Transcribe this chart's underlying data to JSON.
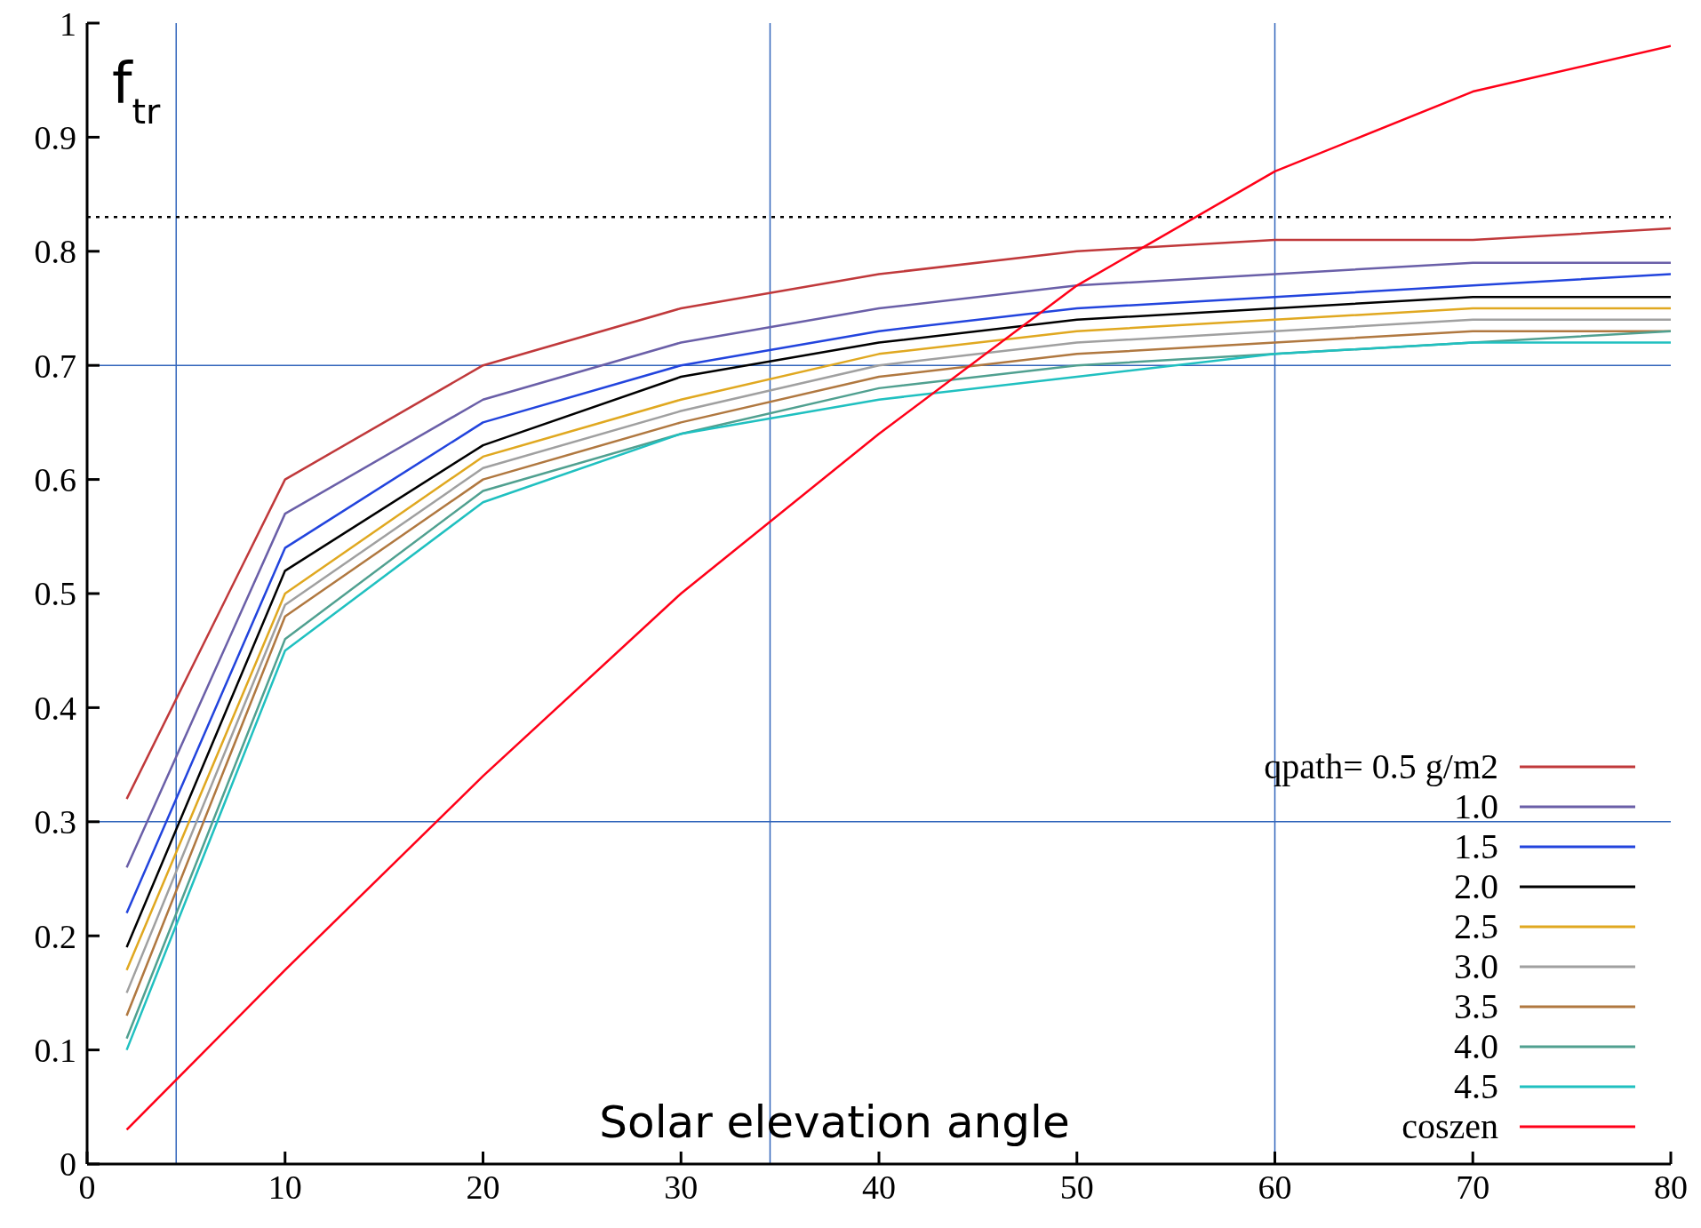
{
  "chart_data": {
    "type": "line",
    "xlabel": "Solar elevation angle",
    "ylabel": "f$_{tr}$",
    "x": [
      2,
      10,
      20,
      30,
      40,
      50,
      60,
      70,
      80
    ],
    "series": [
      {
        "name": "qpath= 0.5 g/m2",
        "color": "#c0393b",
        "values": [
          0.32,
          0.6,
          0.7,
          0.75,
          0.78,
          0.8,
          0.81,
          0.81,
          0.82
        ]
      },
      {
        "name": "1.0",
        "color": "#6a5fa8",
        "values": [
          0.26,
          0.57,
          0.67,
          0.72,
          0.75,
          0.77,
          0.78,
          0.79,
          0.79
        ]
      },
      {
        "name": "1.5",
        "color": "#2244dd",
        "values": [
          0.22,
          0.54,
          0.65,
          0.7,
          0.73,
          0.75,
          0.76,
          0.77,
          0.78
        ]
      },
      {
        "name": "2.0",
        "color": "#000000",
        "values": [
          0.19,
          0.52,
          0.63,
          0.69,
          0.72,
          0.74,
          0.75,
          0.76,
          0.76
        ]
      },
      {
        "name": "2.5",
        "color": "#e0a820",
        "values": [
          0.17,
          0.5,
          0.62,
          0.67,
          0.71,
          0.73,
          0.74,
          0.75,
          0.75
        ]
      },
      {
        "name": "3.0",
        "color": "#a0a0a0",
        "values": [
          0.15,
          0.49,
          0.61,
          0.66,
          0.7,
          0.72,
          0.73,
          0.74,
          0.74
        ]
      },
      {
        "name": "3.5",
        "color": "#b07840",
        "values": [
          0.13,
          0.48,
          0.6,
          0.65,
          0.69,
          0.71,
          0.72,
          0.73,
          0.73
        ]
      },
      {
        "name": "4.0",
        "color": "#50a090",
        "values": [
          0.11,
          0.46,
          0.59,
          0.64,
          0.68,
          0.7,
          0.71,
          0.72,
          0.73
        ]
      },
      {
        "name": "4.5",
        "color": "#20c0c0",
        "values": [
          0.1,
          0.45,
          0.58,
          0.64,
          0.67,
          0.69,
          0.71,
          0.72,
          0.72
        ]
      },
      {
        "name": "coszen",
        "color": "#ff0018",
        "values": [
          0.03,
          0.17,
          0.34,
          0.5,
          0.64,
          0.77,
          0.87,
          0.94,
          0.98
        ]
      }
    ],
    "xlim": [
      0,
      80
    ],
    "xticks": [
      0,
      10,
      20,
      30,
      40,
      50,
      60,
      70,
      80
    ],
    "ylim": [
      0,
      1
    ],
    "yticks": [
      0,
      0.1,
      0.2,
      0.3,
      0.4,
      0.5,
      0.6,
      0.7,
      0.8,
      0.9,
      1
    ],
    "ref_lines": [
      {
        "axis": "x",
        "value": 4.5,
        "color": "#3366bb"
      },
      {
        "axis": "x",
        "value": 34.5,
        "color": "#3366bb"
      },
      {
        "axis": "x",
        "value": 60,
        "color": "#3366bb"
      },
      {
        "axis": "y",
        "value": 0.7,
        "color": "#3366bb"
      },
      {
        "axis": "y",
        "value": 0.3,
        "color": "#3366bb"
      },
      {
        "axis": "y",
        "value": 0.83,
        "color": "#000000",
        "line_style": "dotted"
      }
    ],
    "legend": "bottom right",
    "line_style": "solid",
    "marker": "none",
    "grid": false
  }
}
